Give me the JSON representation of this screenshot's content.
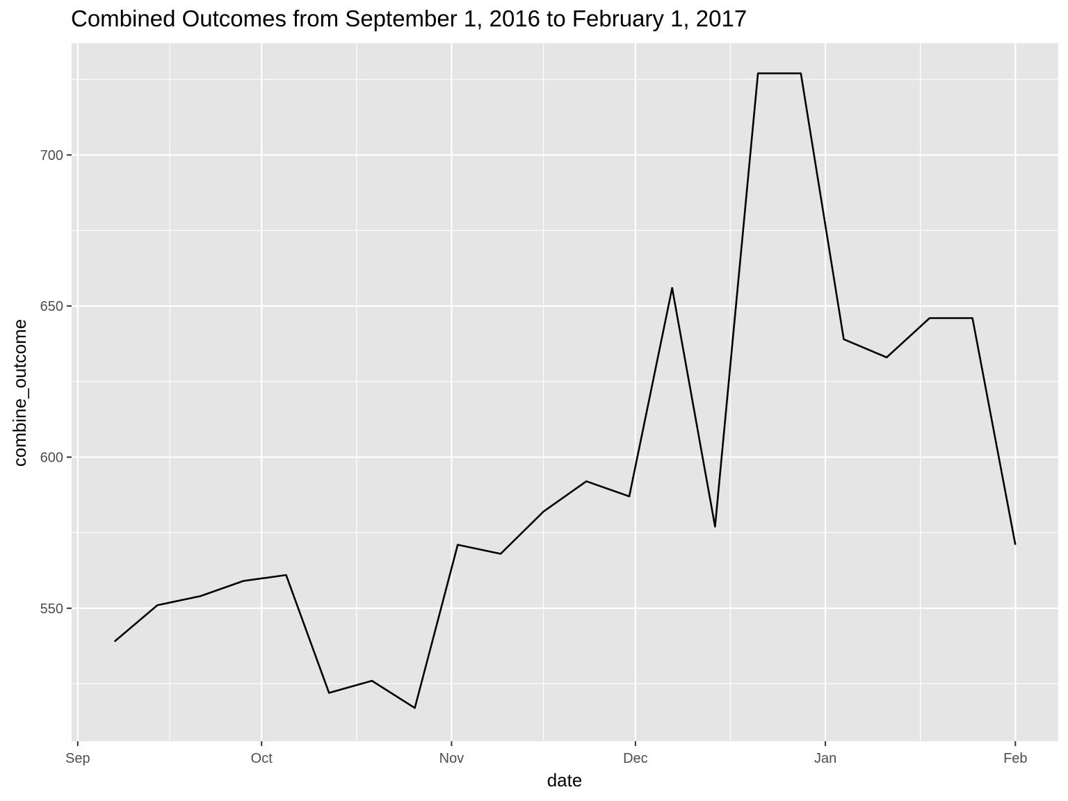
{
  "chart_data": {
    "type": "line",
    "title": "Combined Outcomes from September 1, 2016 to February 1, 2017",
    "xlabel": "date",
    "ylabel": "combine_outcome",
    "x_tick_labels": [
      "Sep",
      "Oct",
      "Nov",
      "Dec",
      "Jan",
      "Feb"
    ],
    "x_tick_dates": [
      "2016-09-01",
      "2016-10-01",
      "2016-11-01",
      "2016-12-01",
      "2017-01-01",
      "2017-02-01"
    ],
    "y_ticks": [
      550,
      600,
      650,
      700
    ],
    "xlim": [
      "2016-08-31",
      "2017-02-08"
    ],
    "ylim": [
      506,
      737
    ],
    "grid": true,
    "x": [
      "2016-09-07",
      "2016-09-14",
      "2016-09-21",
      "2016-09-28",
      "2016-10-05",
      "2016-10-12",
      "2016-10-19",
      "2016-10-26",
      "2016-11-02",
      "2016-11-09",
      "2016-11-16",
      "2016-11-23",
      "2016-11-30",
      "2016-12-07",
      "2016-12-14",
      "2016-12-21",
      "2016-12-28",
      "2017-01-04",
      "2017-01-11",
      "2017-01-18",
      "2017-01-25",
      "2017-02-01"
    ],
    "y": [
      539,
      551,
      554,
      559,
      561,
      522,
      526,
      517,
      571,
      568,
      582,
      592,
      587,
      656,
      577,
      727,
      727,
      639,
      633,
      646,
      646,
      571
    ]
  }
}
